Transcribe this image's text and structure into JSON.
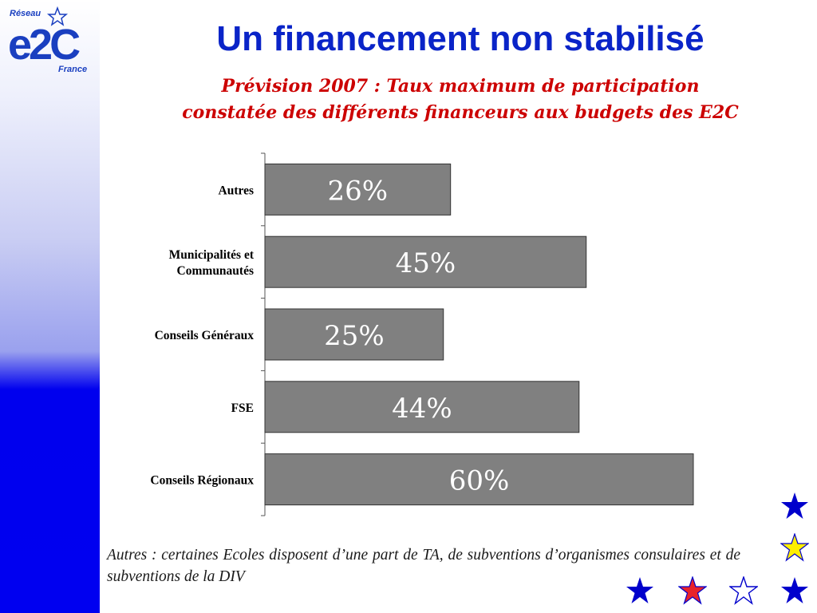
{
  "slide": {
    "title": "Un financement non stabilisé",
    "subtitle_line1": "Prévision 2007 : Taux maximum de participation",
    "subtitle_line2": "constatée des différents financeurs aux budgets des E2C",
    "note": "Autres : certaines Ecoles disposent d’une part de TA, de subventions d’organismes consulaires et de subventions de la DIV"
  },
  "logo": {
    "top_text": "Réseau",
    "main_text": "e2C",
    "bottom_text": "France",
    "color": "#1a3fc0"
  },
  "colors": {
    "title": "#0a24c8",
    "subtitle": "#cc0000",
    "bar_fill": "#808080",
    "bar_stroke": "#333333",
    "label_text": "#ffffff",
    "star_blue": "#0000cc",
    "star_red": "#e8232a",
    "star_yellow": "#ffee00"
  },
  "chart_data": {
    "type": "bar",
    "orientation": "horizontal",
    "categories": [
      "Autres",
      "Municipalités et Communautés",
      "Conseils Généraux",
      "FSE",
      "Conseils Régionaux"
    ],
    "category_labels": [
      [
        "Autres"
      ],
      [
        "Municipalités et",
        "Communautés"
      ],
      [
        "Conseils Généraux"
      ],
      [
        "FSE"
      ],
      [
        "Conseils Régionaux"
      ]
    ],
    "values": [
      26,
      45,
      25,
      44,
      60
    ],
    "value_labels": [
      "26%",
      "45%",
      "25%",
      "44%",
      "60%"
    ],
    "unit": "%",
    "xlim": [
      0,
      100
    ],
    "grid": false,
    "legend": "none"
  },
  "decoration": {
    "stars": [
      "blue-star",
      "yellow-star",
      "blue-star",
      "red-star",
      "outline-star",
      "blue-star"
    ]
  }
}
